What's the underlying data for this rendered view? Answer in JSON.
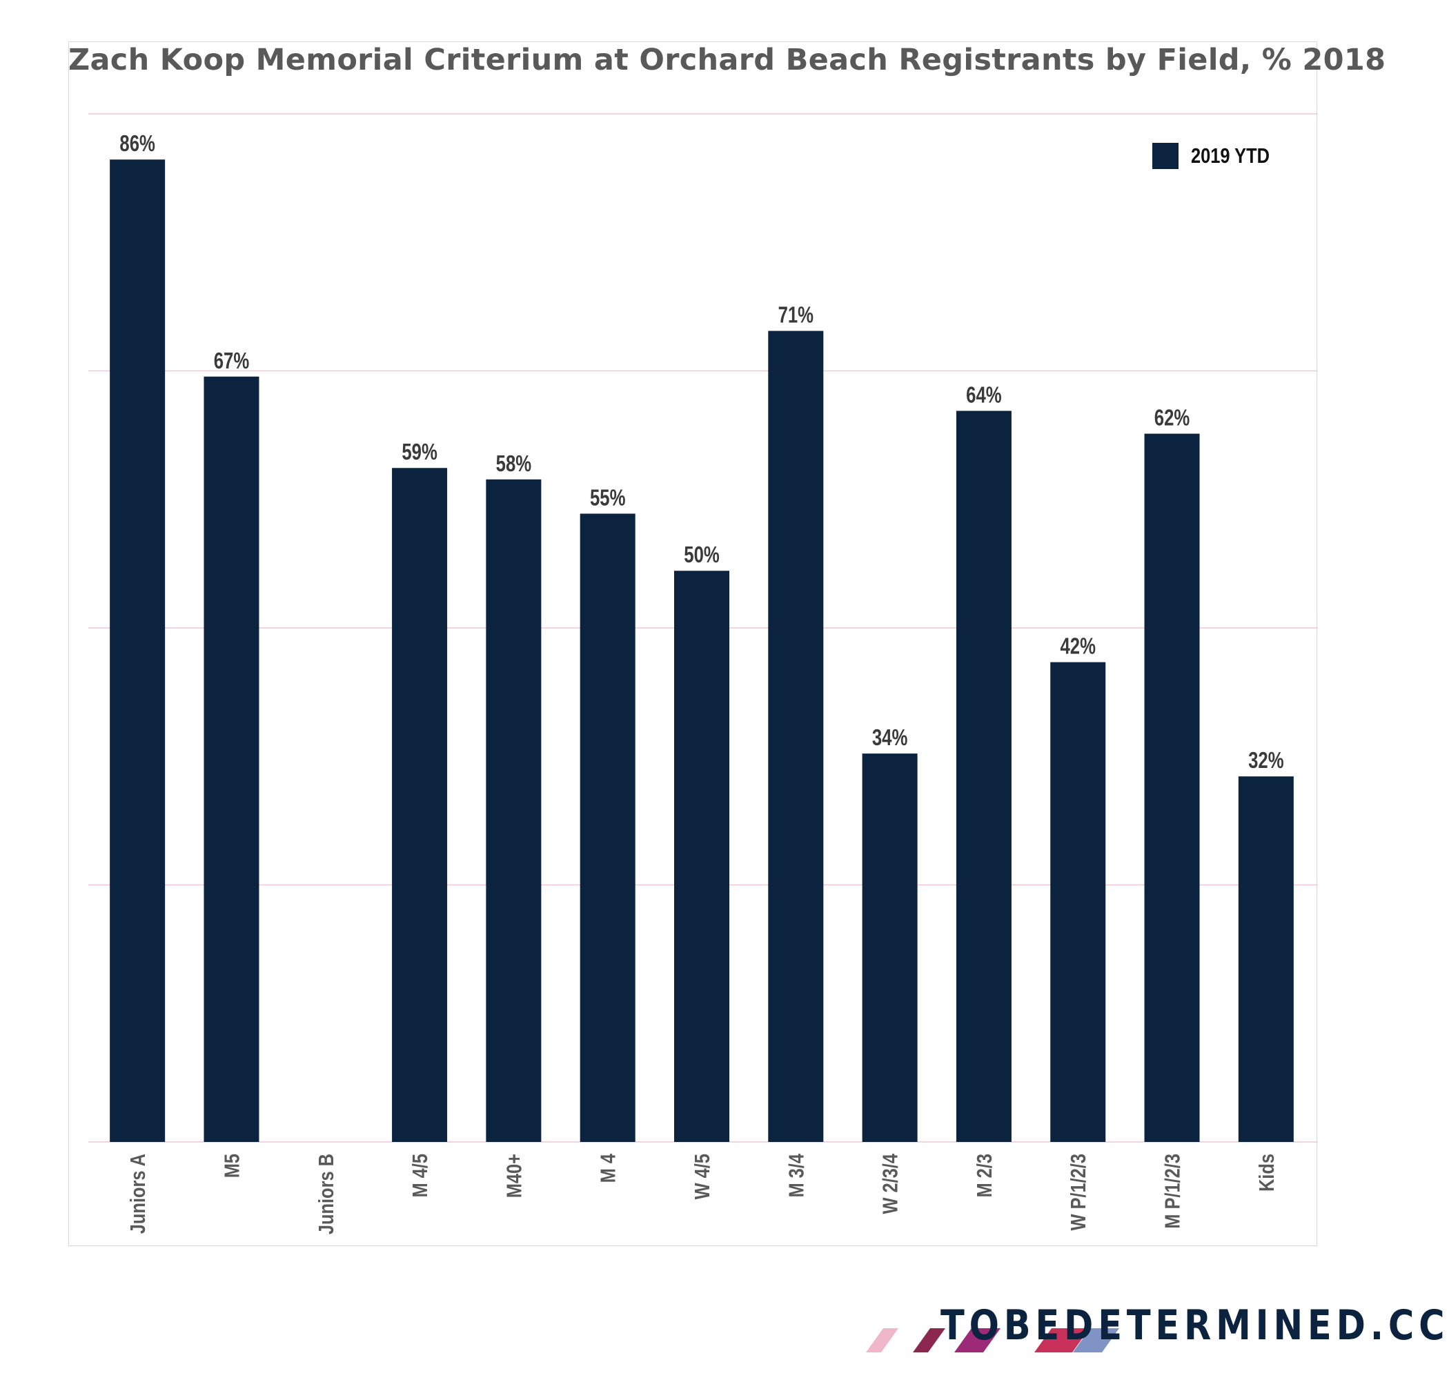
{
  "chart_data": {
    "type": "bar",
    "title": "Zach Koop Memorial Criterium at Orchard Beach Registrants by Field, % 2018",
    "categories": [
      "Juniors A",
      "M5",
      "Juniors B",
      "M 4/5",
      "M40+",
      "M 4",
      "W 4/5",
      "M 3/4",
      "W 2/3/4",
      "M 2/3",
      "W P/1/2/3",
      "M P/1/2/3",
      "Kids"
    ],
    "series": [
      {
        "name": "2019 YTD",
        "values": [
          86,
          67,
          null,
          59,
          58,
          55,
          50,
          71,
          34,
          64,
          42,
          62,
          32
        ],
        "labels": [
          "86%",
          "67%",
          "",
          "59%",
          "58%",
          "55%",
          "50%",
          "71%",
          "34%",
          "64%",
          "42%",
          "62%",
          "32%"
        ]
      }
    ],
    "ylim": [
      0,
      90
    ],
    "grid": true,
    "legend_position": "top-right",
    "xlabel": "",
    "ylabel": ""
  },
  "legend": {
    "label": "2019 YTD"
  },
  "brand": {
    "text": "TOBEDETERMINED.CC",
    "stripe_colors": [
      "#f0b7ca",
      "#8c2850",
      "#9c2a78",
      "#c8325a",
      "#7f93c4"
    ]
  },
  "colors": {
    "bar": "#0c2340",
    "grid": "#efc7d2",
    "axis_text": "#595959",
    "label_text": "#3a3a3a",
    "brand_text": "#0c2340"
  }
}
